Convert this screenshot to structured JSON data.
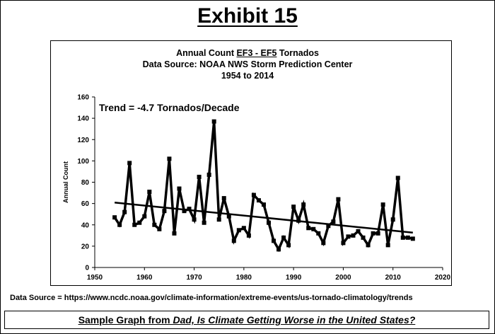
{
  "exhibit_title": "Exhibit 15",
  "data_source_text": "Data Source = https://www.ncdc.noaa.gov/climate-information/extreme-events/us-tornado-climatology/trends",
  "caption": {
    "prefix": "Sample Graph from ",
    "book_title": "Dad, Is Climate Getting Worse in the United States?"
  },
  "colors": {
    "line": "#000000",
    "background": "#ffffff"
  },
  "chart_data": {
    "type": "line",
    "title_line1_prefix": "Annual Count ",
    "title_line1_underlined": "EF3 - EF5",
    "title_line1_suffix": " Tornados",
    "title_line2": "Data Source: NOAA NWS Storm Prediction Center",
    "title_line3": "1954 to 2014",
    "annotation": "Trend = -4.7 Tornados/Decade",
    "xlabel": "",
    "ylabel": "Annual Count",
    "xlim": [
      1950,
      2020
    ],
    "ylim": [
      0,
      160
    ],
    "x_ticks": [
      1950,
      1960,
      1970,
      1980,
      1990,
      2000,
      2010,
      2020
    ],
    "y_ticks": [
      0,
      20,
      40,
      60,
      80,
      100,
      120,
      140,
      160
    ],
    "grid": false,
    "x": [
      1954,
      1955,
      1956,
      1957,
      1958,
      1959,
      1960,
      1961,
      1962,
      1963,
      1964,
      1965,
      1966,
      1967,
      1968,
      1969,
      1970,
      1971,
      1972,
      1973,
      1974,
      1975,
      1976,
      1977,
      1978,
      1979,
      1980,
      1981,
      1982,
      1983,
      1984,
      1985,
      1986,
      1987,
      1988,
      1989,
      1990,
      1991,
      1992,
      1993,
      1994,
      1995,
      1996,
      1997,
      1998,
      1999,
      2000,
      2001,
      2002,
      2003,
      2004,
      2005,
      2006,
      2007,
      2008,
      2009,
      2010,
      2011,
      2012,
      2013,
      2014
    ],
    "series": [
      {
        "name": "EF3-EF5 Tornados",
        "values": [
          47,
          40,
          52,
          98,
          40,
          42,
          48,
          71,
          40,
          36,
          53,
          102,
          32,
          74,
          53,
          55,
          45,
          85,
          42,
          87,
          137,
          45,
          65,
          48,
          25,
          35,
          37,
          30,
          68,
          63,
          59,
          42,
          25,
          17,
          28,
          21,
          57,
          44,
          59,
          37,
          36,
          32,
          23,
          39,
          43,
          64,
          23,
          29,
          30,
          34,
          28,
          21,
          32,
          32,
          59,
          21,
          45,
          84,
          28,
          28,
          27
        ]
      }
    ],
    "trend": {
      "name": "Trend",
      "x": [
        1954,
        2014
      ],
      "values": [
        60.9,
        32.7
      ]
    }
  }
}
